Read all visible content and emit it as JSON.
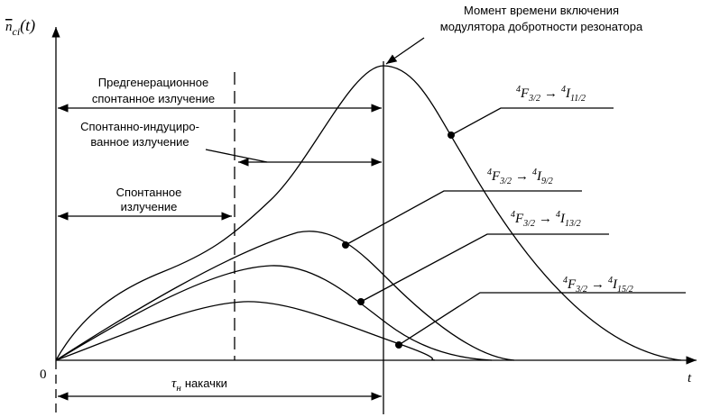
{
  "axes": {
    "y_label": "n",
    "y_label_sub": "ci",
    "y_label_arg": "(t)",
    "origin": "0",
    "x_label": "t"
  },
  "annotations": {
    "q_switch": [
      "Момент времени включения",
      "модулятора добротности резонатора"
    ],
    "pre_generation": [
      "Предгенерационное",
      "спонтанное излучение"
    ],
    "spont_induced": [
      "Спонтанно-индуциро-",
      "ванное излучение"
    ],
    "spontaneous": [
      "Спонтанное",
      "излучение"
    ],
    "pump_time": {
      "symbol": "τ",
      "sub": "н",
      "text": "накачки"
    }
  },
  "transitions": [
    {
      "from_sup": "4",
      "from": "F",
      "from_sub": "3/2",
      "arrow": "→",
      "to_sup": "4",
      "to": "I",
      "to_sub": "11/2"
    },
    {
      "from_sup": "4",
      "from": "F",
      "from_sub": "3/2",
      "arrow": "→",
      "to_sup": "4",
      "to": "I",
      "to_sub": "9/2"
    },
    {
      "from_sup": "4",
      "from": "F",
      "from_sub": "3/2",
      "arrow": "→",
      "to_sup": "4",
      "to": "I",
      "to_sub": "13/2"
    },
    {
      "from_sup": "4",
      "from": "F",
      "from_sub": "3/2",
      "arrow": "→",
      "to_sup": "4",
      "to": "I",
      "to_sub": "15/2"
    }
  ]
}
